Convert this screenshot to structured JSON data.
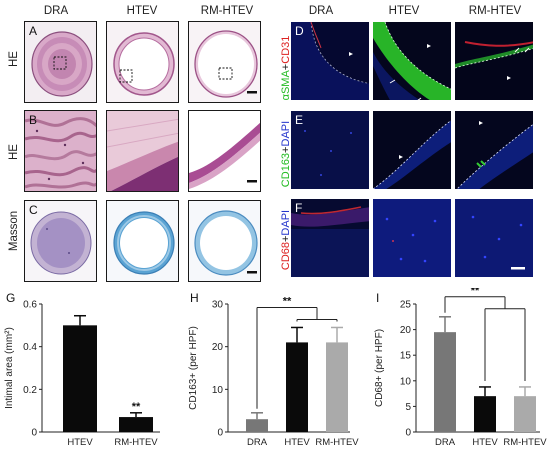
{
  "columns": {
    "left": [
      "DRA",
      "HTEV",
      "RM-HTEV"
    ],
    "right": [
      "DRA",
      "HTEV",
      "RM-HTEV"
    ]
  },
  "rows_left": [
    {
      "letter": "A",
      "stain": "HE"
    },
    {
      "letter": "B",
      "stain": "HE"
    },
    {
      "letter": "C",
      "stain": "Masson"
    }
  ],
  "rows_right": [
    {
      "letter": "D",
      "stain_parts": [
        "αSMA",
        "+",
        "CD31"
      ],
      "colors": [
        "#22bb22",
        "#222222",
        "#dd2222"
      ]
    },
    {
      "letter": "E",
      "stain_parts": [
        "CD163",
        "+",
        "DAPI"
      ],
      "colors": [
        "#22bb22",
        "#222222",
        "#2233cc"
      ]
    },
    {
      "letter": "F",
      "stain_parts": [
        "CD68",
        "+",
        "DAPI"
      ],
      "colors": [
        "#dd2222",
        "#222222",
        "#2233cc"
      ]
    }
  ],
  "chart_data": [
    {
      "panel": "G",
      "type": "bar",
      "categories": [
        "HTEV",
        "RM-HTEV"
      ],
      "values": [
        0.5,
        0.07
      ],
      "errors": [
        0.045,
        0.02
      ],
      "colors": [
        "#0a0a0a",
        "#0a0a0a"
      ],
      "ylabel": "Intimal area (mm²)",
      "ylim": [
        0,
        0.6
      ],
      "yticks": [
        "0",
        "0.2",
        "0.4",
        "0.6"
      ],
      "annotation": "**"
    },
    {
      "panel": "H",
      "type": "bar",
      "categories": [
        "DRA",
        "HTEV",
        "RM-HTEV"
      ],
      "values": [
        3,
        21,
        21
      ],
      "errors": [
        1.5,
        3.5,
        3.5
      ],
      "colors": [
        "#777777",
        "#0a0a0a",
        "#aaaaaa"
      ],
      "ylabel": "CD163+ (per HPF)",
      "ylim": [
        0,
        30
      ],
      "yticks": [
        "0",
        "10",
        "20",
        "30"
      ],
      "annotation": "**"
    },
    {
      "panel": "I",
      "type": "bar",
      "categories": [
        "DRA",
        "HTEV",
        "RM-HTEV"
      ],
      "values": [
        19.5,
        7,
        7
      ],
      "errors": [
        3,
        1.8,
        1.8
      ],
      "colors": [
        "#777777",
        "#0a0a0a",
        "#aaaaaa"
      ],
      "ylabel": "CD68+ (per HPF)",
      "ylim": [
        0,
        25
      ],
      "yticks": [
        "0",
        "5",
        "10",
        "15",
        "20",
        "25"
      ],
      "annotation": "**"
    }
  ]
}
